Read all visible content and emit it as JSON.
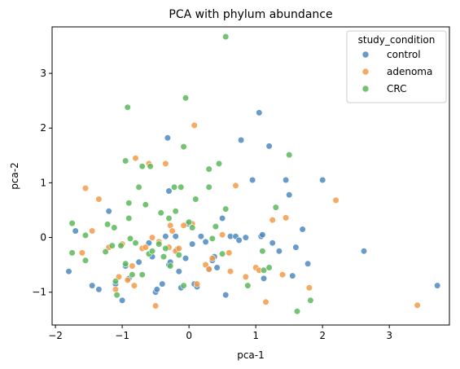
{
  "chart_data": {
    "type": "scatter",
    "title": "PCA with phylum abundance",
    "xlabel": "pca-1",
    "ylabel": "pca-2",
    "xlim": [
      -2.05,
      3.9
    ],
    "ylim": [
      -1.6,
      3.85
    ],
    "xticks": [
      -2,
      -1,
      0,
      1,
      2,
      3
    ],
    "yticks": [
      -1,
      0,
      1,
      2,
      3
    ],
    "grid": false,
    "legend": {
      "title": "study_condition",
      "placement": "top-right"
    },
    "series": [
      {
        "name": "control",
        "color": "#4c89c0",
        "points": [
          [
            -1.8,
            -0.62
          ],
          [
            -1.7,
            0.12
          ],
          [
            -1.45,
            -0.88
          ],
          [
            -1.35,
            -0.95
          ],
          [
            -1.2,
            0.48
          ],
          [
            -1.1,
            -0.85
          ],
          [
            -1.0,
            -1.15
          ],
          [
            -0.95,
            -0.52
          ],
          [
            -0.9,
            -0.75
          ],
          [
            -0.75,
            -0.45
          ],
          [
            -0.6,
            -0.1
          ],
          [
            -0.55,
            -0.35
          ],
          [
            -0.5,
            -1.0
          ],
          [
            -0.48,
            -0.95
          ],
          [
            -0.4,
            -0.85
          ],
          [
            -0.35,
            0.02
          ],
          [
            -0.32,
            1.82
          ],
          [
            -0.3,
            0.85
          ],
          [
            -0.3,
            -0.5
          ],
          [
            -0.28,
            -0.45
          ],
          [
            -0.2,
            0.02
          ],
          [
            -0.18,
            -0.22
          ],
          [
            -0.15,
            -0.62
          ],
          [
            -0.12,
            -0.92
          ],
          [
            -0.05,
            -0.38
          ],
          [
            -0.02,
            0.25
          ],
          [
            0.05,
            -0.12
          ],
          [
            0.08,
            -0.85
          ],
          [
            0.12,
            -0.9
          ],
          [
            0.18,
            0.02
          ],
          [
            0.25,
            -0.08
          ],
          [
            0.3,
            -0.58
          ],
          [
            0.35,
            -0.42
          ],
          [
            0.38,
            -0.35
          ],
          [
            0.42,
            -0.55
          ],
          [
            0.5,
            0.35
          ],
          [
            0.55,
            -1.05
          ],
          [
            0.62,
            0.02
          ],
          [
            0.7,
            0.02
          ],
          [
            0.75,
            -0.05
          ],
          [
            0.78,
            1.78
          ],
          [
            0.85,
            0.0
          ],
          [
            0.95,
            1.05
          ],
          [
            1.05,
            2.28
          ],
          [
            1.08,
            0.02
          ],
          [
            1.1,
            0.05
          ],
          [
            1.12,
            -0.75
          ],
          [
            1.2,
            1.67
          ],
          [
            1.25,
            -0.1
          ],
          [
            1.35,
            -0.25
          ],
          [
            1.45,
            1.05
          ],
          [
            1.5,
            0.78
          ],
          [
            1.55,
            -0.7
          ],
          [
            1.6,
            -0.18
          ],
          [
            1.7,
            0.15
          ],
          [
            1.78,
            -0.48
          ],
          [
            2.0,
            1.05
          ],
          [
            2.62,
            -0.25
          ],
          [
            3.72,
            -0.88
          ]
        ]
      },
      {
        "name": "adenoma",
        "color": "#f59a45",
        "points": [
          [
            -1.6,
            -0.28
          ],
          [
            -1.55,
            0.9
          ],
          [
            -1.45,
            0.12
          ],
          [
            -1.35,
            0.7
          ],
          [
            -1.2,
            -0.18
          ],
          [
            -1.1,
            -0.95
          ],
          [
            -1.05,
            -0.72
          ],
          [
            -1.0,
            -0.12
          ],
          [
            -0.92,
            -0.78
          ],
          [
            -0.85,
            -0.52
          ],
          [
            -0.82,
            -0.88
          ],
          [
            -0.8,
            1.45
          ],
          [
            -0.7,
            -0.2
          ],
          [
            -0.65,
            -0.18
          ],
          [
            -0.6,
            1.35
          ],
          [
            -0.55,
            0.0
          ],
          [
            -0.5,
            -1.25
          ],
          [
            -0.45,
            -0.08
          ],
          [
            -0.35,
            1.35
          ],
          [
            -0.3,
            -0.18
          ],
          [
            -0.28,
            0.22
          ],
          [
            -0.25,
            0.12
          ],
          [
            -0.2,
            -0.25
          ],
          [
            -0.15,
            -0.2
          ],
          [
            -0.08,
            0.22
          ],
          [
            0.05,
            0.25
          ],
          [
            0.08,
            2.05
          ],
          [
            0.12,
            -0.85
          ],
          [
            0.25,
            -0.5
          ],
          [
            0.3,
            -0.58
          ],
          [
            0.35,
            -0.38
          ],
          [
            0.5,
            0.05
          ],
          [
            0.6,
            -0.28
          ],
          [
            0.62,
            -0.62
          ],
          [
            0.7,
            0.95
          ],
          [
            0.85,
            -0.72
          ],
          [
            1.0,
            -0.55
          ],
          [
            1.05,
            -0.6
          ],
          [
            1.15,
            -1.18
          ],
          [
            1.25,
            0.32
          ],
          [
            1.4,
            -0.68
          ],
          [
            1.45,
            0.36
          ],
          [
            1.8,
            -0.92
          ],
          [
            2.2,
            0.68
          ],
          [
            3.42,
            -1.24
          ]
        ]
      },
      {
        "name": "CRC",
        "color": "#5bb85b",
        "points": [
          [
            -1.75,
            0.26
          ],
          [
            -1.75,
            -0.28
          ],
          [
            -1.55,
            -0.42
          ],
          [
            -1.55,
            0.04
          ],
          [
            -1.25,
            -0.26
          ],
          [
            -1.22,
            0.24
          ],
          [
            -1.15,
            -0.15
          ],
          [
            -1.12,
            0.18
          ],
          [
            -1.1,
            -0.8
          ],
          [
            -1.08,
            -1.05
          ],
          [
            -1.02,
            -0.15
          ],
          [
            -0.95,
            -0.48
          ],
          [
            -0.95,
            1.4
          ],
          [
            -0.92,
            2.38
          ],
          [
            -0.9,
            0.35
          ],
          [
            -0.9,
            0.63
          ],
          [
            -0.88,
            -0.02
          ],
          [
            -0.85,
            -0.68
          ],
          [
            -0.8,
            -0.1
          ],
          [
            -0.75,
            0.92
          ],
          [
            -0.7,
            1.3
          ],
          [
            -0.7,
            -0.68
          ],
          [
            -0.65,
            0.6
          ],
          [
            -0.6,
            -0.3
          ],
          [
            -0.58,
            1.3
          ],
          [
            -0.55,
            -0.25
          ],
          [
            -0.45,
            -0.12
          ],
          [
            -0.42,
            0.45
          ],
          [
            -0.38,
            -0.35
          ],
          [
            -0.35,
            -0.2
          ],
          [
            -0.3,
            0.35
          ],
          [
            -0.28,
            -0.52
          ],
          [
            -0.22,
            0.92
          ],
          [
            -0.2,
            0.48
          ],
          [
            -0.15,
            -0.32
          ],
          [
            -0.12,
            0.92
          ],
          [
            -0.08,
            1.66
          ],
          [
            -0.08,
            -0.88
          ],
          [
            -0.05,
            2.55
          ],
          [
            0.0,
            0.28
          ],
          [
            0.05,
            0.18
          ],
          [
            0.1,
            0.7
          ],
          [
            0.3,
            1.25
          ],
          [
            0.3,
            0.92
          ],
          [
            0.35,
            -0.02
          ],
          [
            0.4,
            0.2
          ],
          [
            0.45,
            1.35
          ],
          [
            0.5,
            -0.3
          ],
          [
            0.55,
            0.52
          ],
          [
            0.55,
            3.67
          ],
          [
            0.88,
            -0.88
          ],
          [
            1.1,
            -0.25
          ],
          [
            1.12,
            -0.6
          ],
          [
            1.2,
            -0.55
          ],
          [
            1.3,
            0.55
          ],
          [
            1.5,
            1.51
          ],
          [
            1.62,
            -1.35
          ],
          [
            1.82,
            -1.15
          ]
        ]
      }
    ]
  }
}
